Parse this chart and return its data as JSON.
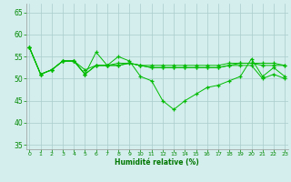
{
  "series": [
    [
      57,
      51,
      52,
      54,
      54,
      51,
      56,
      53,
      55,
      54,
      50.5,
      49.5,
      45,
      43,
      45,
      46.5,
      48,
      48.5,
      49.5,
      50.5,
      54.5,
      50.5,
      52.5,
      50.5
    ],
    [
      57,
      51,
      52,
      54,
      54,
      52,
      53,
      53,
      53.5,
      53.5,
      53,
      53,
      53,
      53,
      53,
      53,
      53,
      53,
      53.5,
      53.5,
      53.5,
      53.5,
      53.5,
      53
    ],
    [
      57,
      51,
      52,
      54,
      54,
      51,
      53,
      53,
      53,
      53.5,
      53,
      52.5,
      52.5,
      52.5,
      52.5,
      52.5,
      52.5,
      52.5,
      53,
      53,
      53,
      50,
      51,
      50
    ],
    [
      57,
      51,
      52,
      54,
      54,
      51,
      53,
      53,
      53,
      53.5,
      53,
      52.5,
      52.5,
      52.5,
      52.5,
      52.5,
      52.5,
      52.5,
      53,
      53.5,
      53.5,
      53,
      53,
      53
    ]
  ],
  "x": [
    0,
    1,
    2,
    3,
    4,
    5,
    6,
    7,
    8,
    9,
    10,
    11,
    12,
    13,
    14,
    15,
    16,
    17,
    18,
    19,
    20,
    21,
    22,
    23
  ],
  "xlim": [
    -0.3,
    23.3
  ],
  "ylim": [
    34,
    67
  ],
  "yticks": [
    35,
    40,
    45,
    50,
    55,
    60,
    65
  ],
  "xticks": [
    0,
    1,
    2,
    3,
    4,
    5,
    6,
    7,
    8,
    9,
    10,
    11,
    12,
    13,
    14,
    15,
    16,
    17,
    18,
    19,
    20,
    21,
    22,
    23
  ],
  "xlabel": "Humidité relative (%)",
  "line_color": "#00bb00",
  "marker": "+",
  "bg_color": "#d4eeee",
  "grid_color": "#aacccc",
  "tick_color": "#008800",
  "label_color": "#007700"
}
